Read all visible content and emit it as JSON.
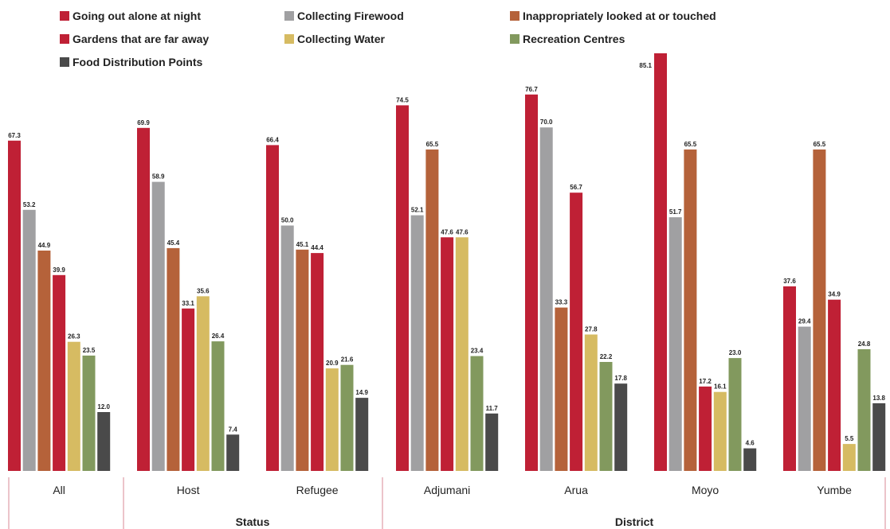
{
  "chart_data": {
    "type": "bar",
    "categories": [
      "All",
      "Host",
      "Refugee",
      "Adjumani",
      "Arua",
      "Moyo",
      "Yumbe"
    ],
    "series": [
      {
        "name": "Going out alone at night",
        "color": "#bf2035",
        "values": [
          67.3,
          69.9,
          66.4,
          74.5,
          76.7,
          85.1,
          37.6
        ]
      },
      {
        "name": "Collecting Firewood",
        "color": "#a0a0a2",
        "values": [
          53.2,
          58.9,
          50.0,
          52.1,
          70.0,
          51.7,
          29.4
        ]
      },
      {
        "name": "Inappropriately looked at or touched",
        "color": "#b5623a",
        "values": [
          44.9,
          45.4,
          45.1,
          65.5,
          33.3,
          65.5,
          65.5
        ]
      },
      {
        "name": "Gardens that are far away",
        "color": "#bf2035",
        "values": [
          39.9,
          33.1,
          44.4,
          47.6,
          56.7,
          17.2,
          34.9
        ]
      },
      {
        "name": "Collecting Water",
        "color": "#d6bb62",
        "values": [
          26.3,
          35.6,
          20.9,
          47.6,
          27.8,
          16.1,
          5.5
        ]
      },
      {
        "name": "Recreation Centres",
        "color": "#82995e",
        "values": [
          23.5,
          26.4,
          21.6,
          23.4,
          22.2,
          23.0,
          24.8
        ]
      },
      {
        "name": "Food Distribution Points",
        "color": "#4a4a4a",
        "values": [
          12.0,
          7.4,
          14.9,
          11.7,
          17.8,
          4.6,
          13.8
        ]
      }
    ],
    "value_labels": [
      [
        "67.3",
        "53.2",
        "44.9",
        "39.9",
        "26.3",
        "23.5",
        "12.0"
      ],
      [
        "69.9",
        "58.9",
        "45.4",
        "33.1",
        "35.6",
        "26.4",
        "7.4"
      ],
      [
        "66.4",
        "50.0",
        "45.1",
        "44.4",
        "20.9",
        "21.6",
        "14.9"
      ],
      [
        "74.5",
        "52.1",
        "65.5",
        "47.6",
        "47.6",
        "23.4",
        "11.7"
      ],
      [
        "76.7",
        "70.0",
        "33.3",
        "56.7",
        "27.8",
        "22.2",
        "17.8"
      ],
      [
        "85.1",
        "51.7",
        "65.5",
        "17.2",
        "16.1",
        "23.0",
        "4.6"
      ],
      [
        "37.6",
        "29.4",
        "65.5",
        "34.9",
        "5.5",
        "24.8",
        "13.8"
      ]
    ],
    "groups": [
      {
        "label": "",
        "categories": [
          "All"
        ]
      },
      {
        "label": "Status",
        "categories": [
          "Host",
          "Refugee"
        ]
      },
      {
        "label": "District",
        "categories": [
          "Adjumani",
          "Arua",
          "Moyo",
          "Yumbe"
        ]
      }
    ],
    "ylim": [
      0,
      85.1
    ],
    "legend_position": "top",
    "grid": false,
    "title": "",
    "xlabel": "",
    "ylabel": ""
  }
}
